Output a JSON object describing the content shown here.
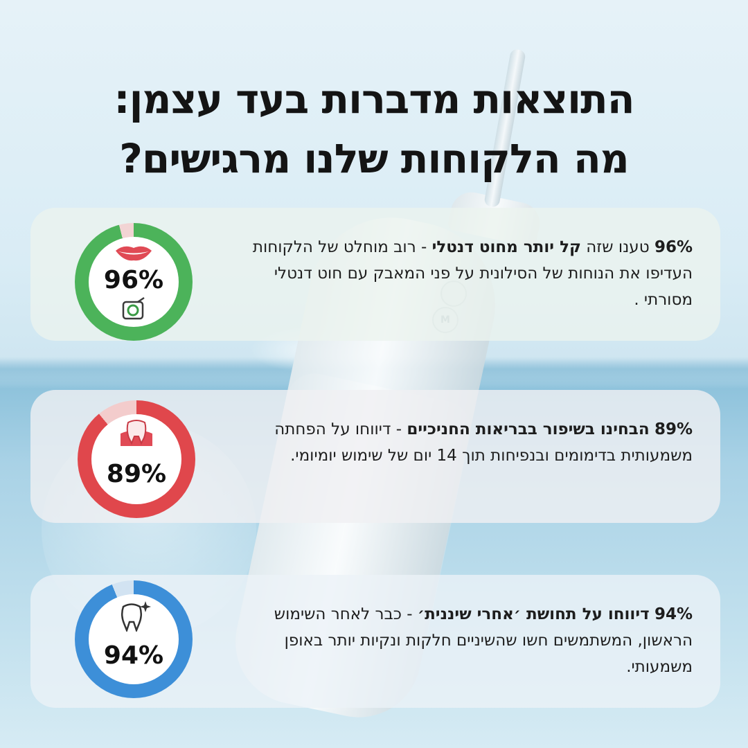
{
  "title": {
    "line1": "התוצאות מדברות בעד עצמן:",
    "line2": "מה הלקוחות שלנו מרגישים?"
  },
  "stats": [
    {
      "percent_label": "96%",
      "percent_value": 96,
      "ring_color": "#4cb35a",
      "ring_track_color": "#f2d4d4",
      "icons": [
        "lips-icon",
        "floss-box-icon"
      ],
      "lead": "96%",
      "mid": " טענו שזה ",
      "bold": "קל יותר מחוט דנטלי",
      "rest": " - רוב מוחלט של הלקוחות העדיפו את הנוחות של הסילונית על פני המאבק עם חוט דנטלי מסורתי ."
    },
    {
      "percent_label": "89%",
      "percent_value": 89,
      "ring_color": "#e0474c",
      "ring_track_color": "#f3cccc",
      "icons": [
        "tooth-gum-icon"
      ],
      "lead": "89%",
      "mid": " ",
      "bold": "הבחינו בשיפור בבריאות החניכיים",
      "rest": " - דיווחו על הפחתה משמעותית בדימומים ובנפיחות תוך 14 יום של שימוש יומיומי."
    },
    {
      "percent_label": "94%",
      "percent_value": 94,
      "ring_color": "#3d8fd8",
      "ring_track_color": "#d2e3f2",
      "icons": [
        "sparkling-tooth-icon"
      ],
      "lead": "94%",
      "mid": " ",
      "bold": "דיווחו על תחושת ׳אחרי שיננית׳",
      "rest": " - כבר לאחר השימוש הראשון, המשתמשים חשו שהשיניים חלקות ונקיות יותר באופן משמעותי."
    }
  ],
  "device": {
    "button_1_label": "",
    "button_2_label": "M"
  }
}
